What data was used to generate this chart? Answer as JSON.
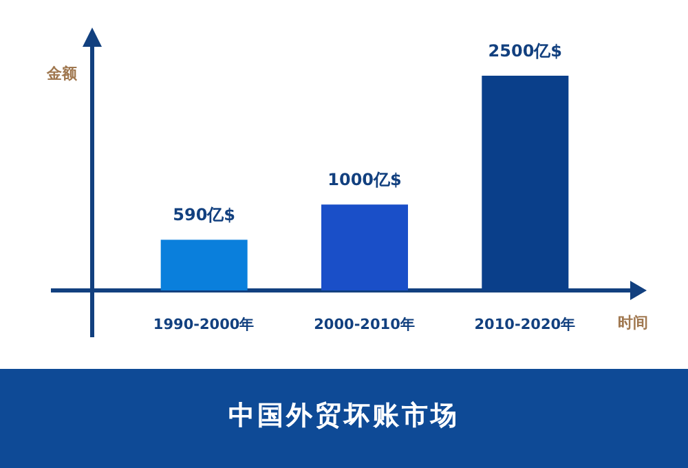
{
  "chart_data": {
    "type": "bar",
    "title": "中国外贸坏账市场",
    "xlabel": "时间",
    "ylabel": "金额",
    "categories": [
      "1990-2000年",
      "2000-2010年",
      "2010-2020年"
    ],
    "values": [
      590,
      1000,
      2500
    ],
    "colors": [
      "#0a7fdc",
      "#1a4fc8",
      "#0a3f8a"
    ],
    "value_labels": [
      "590亿$",
      "1000亿$",
      "2500亿$"
    ]
  }
}
